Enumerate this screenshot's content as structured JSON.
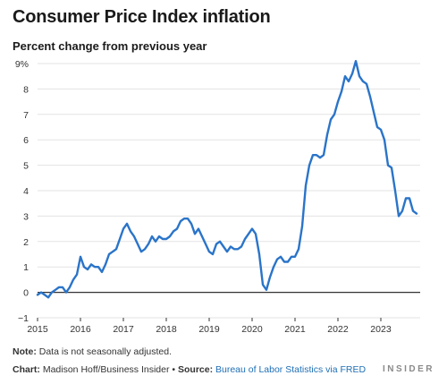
{
  "title": "Consumer Price Index inflation",
  "subtitle": "Percent change from previous year",
  "note_label": "Note:",
  "note_text": " Data is not seasonally adjusted.",
  "chart_label": "Chart:",
  "chart_credit": " Madison Hoff/Business Insider • ",
  "source_label": "Source:",
  "source_text": "Bureau of Labor Statistics via FRED",
  "brand": "INSIDER",
  "colors": {
    "line": "#2a74c9",
    "grid": "#e3e3e3",
    "zero": "#333333"
  },
  "chart_data": {
    "type": "line",
    "title": "Consumer Price Index inflation",
    "ylabel": "Percent change from previous year",
    "ylim": [
      -1,
      9
    ],
    "yticks": [
      -1,
      0,
      1,
      2,
      3,
      4,
      5,
      6,
      7,
      8,
      9
    ],
    "ytick_labels": [
      "−1",
      "0",
      "1",
      "2",
      "3",
      "4",
      "5",
      "6",
      "7",
      "8",
      "9%"
    ],
    "xlim": [
      2015.0,
      2023.917
    ],
    "xticks": [
      2015,
      2016,
      2017,
      2018,
      2019,
      2020,
      2021,
      2022,
      2023
    ],
    "xtick_labels": [
      "2015",
      "2016",
      "2017",
      "2018",
      "2019",
      "2020",
      "2021",
      "2022",
      "2023"
    ],
    "grid": true,
    "series": [
      {
        "x": [
          2015.0,
          2015.083,
          2015.167,
          2015.25,
          2015.333,
          2015.417,
          2015.5,
          2015.583,
          2015.667,
          2015.75,
          2015.833,
          2015.917,
          2016.0,
          2016.083,
          2016.167,
          2016.25,
          2016.333,
          2016.417,
          2016.5,
          2016.583,
          2016.667,
          2016.75,
          2016.833,
          2016.917,
          2017.0,
          2017.083,
          2017.167,
          2017.25,
          2017.333,
          2017.417,
          2017.5,
          2017.583,
          2017.667,
          2017.75,
          2017.833,
          2017.917,
          2018.0,
          2018.083,
          2018.167,
          2018.25,
          2018.333,
          2018.417,
          2018.5,
          2018.583,
          2018.667,
          2018.75,
          2018.833,
          2018.917,
          2019.0,
          2019.083,
          2019.167,
          2019.25,
          2019.333,
          2019.417,
          2019.5,
          2019.583,
          2019.667,
          2019.75,
          2019.833,
          2019.917,
          2020.0,
          2020.083,
          2020.167,
          2020.25,
          2020.333,
          2020.417,
          2020.5,
          2020.583,
          2020.667,
          2020.75,
          2020.833,
          2020.917,
          2021.0,
          2021.083,
          2021.167,
          2021.25,
          2021.333,
          2021.417,
          2021.5,
          2021.583,
          2021.667,
          2021.75,
          2021.833,
          2021.917,
          2022.0,
          2022.083,
          2022.167,
          2022.25,
          2022.333,
          2022.417,
          2022.5,
          2022.583,
          2022.667,
          2022.75,
          2022.833,
          2022.917,
          2023.0,
          2023.083,
          2023.167,
          2023.25,
          2023.333,
          2023.417,
          2023.5,
          2023.583,
          2023.667,
          2023.75,
          2023.833
        ],
        "values": [
          -0.1,
          0.0,
          -0.1,
          -0.2,
          0.0,
          0.1,
          0.2,
          0.2,
          0.0,
          0.2,
          0.5,
          0.7,
          1.4,
          1.0,
          0.9,
          1.1,
          1.0,
          1.0,
          0.8,
          1.1,
          1.5,
          1.6,
          1.7,
          2.1,
          2.5,
          2.7,
          2.4,
          2.2,
          1.9,
          1.6,
          1.7,
          1.9,
          2.2,
          2.0,
          2.2,
          2.1,
          2.1,
          2.2,
          2.4,
          2.5,
          2.8,
          2.9,
          2.9,
          2.7,
          2.3,
          2.5,
          2.2,
          1.9,
          1.6,
          1.5,
          1.9,
          2.0,
          1.8,
          1.6,
          1.8,
          1.7,
          1.7,
          1.8,
          2.1,
          2.3,
          2.5,
          2.3,
          1.5,
          0.3,
          0.1,
          0.6,
          1.0,
          1.3,
          1.4,
          1.2,
          1.2,
          1.4,
          1.4,
          1.7,
          2.6,
          4.2,
          5.0,
          5.4,
          5.4,
          5.3,
          5.4,
          6.2,
          6.8,
          7.0,
          7.5,
          7.9,
          8.5,
          8.3,
          8.6,
          9.1,
          8.5,
          8.3,
          8.2,
          7.7,
          7.1,
          6.5,
          6.4,
          6.0,
          5.0,
          4.9,
          4.0,
          3.0,
          3.2,
          3.7,
          3.7,
          3.2,
          3.1
        ]
      }
    ]
  }
}
